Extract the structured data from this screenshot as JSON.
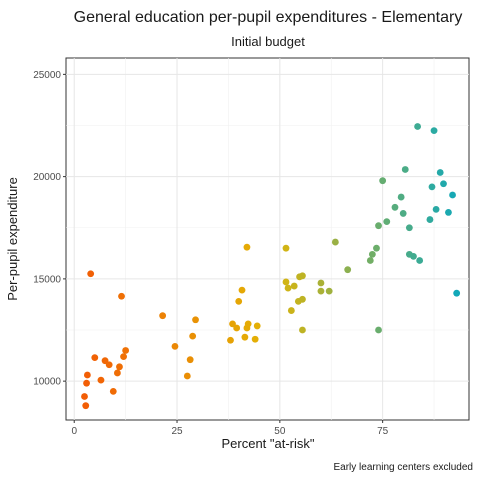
{
  "chart_data": {
    "type": "scatter",
    "title": "General education per-pupil expenditures - Elementary",
    "subtitle": "Initial budget",
    "xlabel": "Percent \"at-risk\"",
    "ylabel": "Per-pupil expenditure",
    "caption": "Early learning centers excluded",
    "xlim": [
      -2,
      96
    ],
    "ylim": [
      8100,
      25800
    ],
    "xticks": [
      0,
      25,
      50,
      75
    ],
    "yticks": [
      10000,
      15000,
      20000,
      25000
    ],
    "grid": true,
    "legend": "none",
    "color_scale": {
      "low": "#F25C05",
      "mid": "#E3B505",
      "high": "#12A8B8",
      "range": [
        2,
        93
      ]
    },
    "points": [
      {
        "x": 2.5,
        "y": 9250
      },
      {
        "x": 2.8,
        "y": 8800
      },
      {
        "x": 3.0,
        "y": 9900
      },
      {
        "x": 3.2,
        "y": 10300
      },
      {
        "x": 4.0,
        "y": 15250
      },
      {
        "x": 5.0,
        "y": 11150
      },
      {
        "x": 6.5,
        "y": 10050
      },
      {
        "x": 7.5,
        "y": 11000
      },
      {
        "x": 8.5,
        "y": 10800
      },
      {
        "x": 9.5,
        "y": 9500
      },
      {
        "x": 10.5,
        "y": 10400
      },
      {
        "x": 11.0,
        "y": 10700
      },
      {
        "x": 11.5,
        "y": 14150
      },
      {
        "x": 12.0,
        "y": 11200
      },
      {
        "x": 12.5,
        "y": 11500
      },
      {
        "x": 21.5,
        "y": 13200
      },
      {
        "x": 24.5,
        "y": 11700
      },
      {
        "x": 27.5,
        "y": 10250
      },
      {
        "x": 28.2,
        "y": 11050
      },
      {
        "x": 28.8,
        "y": 12200
      },
      {
        "x": 29.5,
        "y": 13000
      },
      {
        "x": 38.0,
        "y": 12000
      },
      {
        "x": 38.5,
        "y": 12800
      },
      {
        "x": 39.5,
        "y": 12600
      },
      {
        "x": 40.0,
        "y": 13900
      },
      {
        "x": 40.8,
        "y": 14450
      },
      {
        "x": 41.5,
        "y": 12150
      },
      {
        "x": 42.0,
        "y": 12600
      },
      {
        "x": 42.3,
        "y": 12800
      },
      {
        "x": 42.0,
        "y": 16550
      },
      {
        "x": 44.0,
        "y": 12050
      },
      {
        "x": 44.5,
        "y": 12700
      },
      {
        "x": 51.5,
        "y": 16500
      },
      {
        "x": 51.5,
        "y": 14850
      },
      {
        "x": 52.0,
        "y": 14550
      },
      {
        "x": 52.8,
        "y": 13450
      },
      {
        "x": 53.5,
        "y": 14650
      },
      {
        "x": 54.5,
        "y": 13900
      },
      {
        "x": 54.8,
        "y": 15100
      },
      {
        "x": 55.5,
        "y": 12500
      },
      {
        "x": 55.5,
        "y": 15150
      },
      {
        "x": 55.5,
        "y": 14000
      },
      {
        "x": 60.0,
        "y": 14400
      },
      {
        "x": 60.0,
        "y": 14800
      },
      {
        "x": 62.0,
        "y": 14400
      },
      {
        "x": 63.5,
        "y": 16800
      },
      {
        "x": 66.5,
        "y": 15450
      },
      {
        "x": 72.0,
        "y": 15900
      },
      {
        "x": 72.5,
        "y": 16200
      },
      {
        "x": 73.5,
        "y": 16500
      },
      {
        "x": 74.0,
        "y": 12500
      },
      {
        "x": 74.0,
        "y": 17600
      },
      {
        "x": 75.0,
        "y": 19800
      },
      {
        "x": 76.0,
        "y": 17800
      },
      {
        "x": 78.0,
        "y": 18500
      },
      {
        "x": 79.5,
        "y": 19000
      },
      {
        "x": 80.0,
        "y": 18200
      },
      {
        "x": 80.5,
        "y": 20350
      },
      {
        "x": 81.5,
        "y": 16200
      },
      {
        "x": 81.5,
        "y": 17500
      },
      {
        "x": 82.5,
        "y": 16100
      },
      {
        "x": 83.5,
        "y": 22450
      },
      {
        "x": 84.0,
        "y": 15900
      },
      {
        "x": 86.5,
        "y": 17900
      },
      {
        "x": 87.5,
        "y": 22250
      },
      {
        "x": 87.0,
        "y": 19500
      },
      {
        "x": 88.0,
        "y": 18400
      },
      {
        "x": 89.0,
        "y": 20200
      },
      {
        "x": 89.8,
        "y": 19650
      },
      {
        "x": 91.0,
        "y": 18250
      },
      {
        "x": 92.0,
        "y": 19100
      },
      {
        "x": 93.0,
        "y": 14300
      }
    ]
  }
}
